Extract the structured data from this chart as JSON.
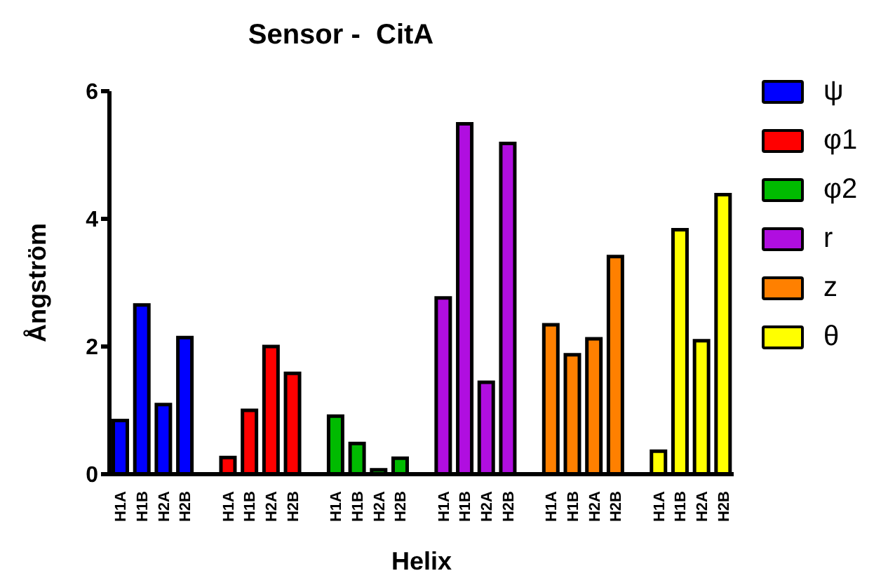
{
  "chart_data": {
    "type": "bar",
    "title": "Sensor -  CitA",
    "xlabel": "Helix",
    "ylabel": "Ångström",
    "categories": [
      "H1A",
      "H1B",
      "H2A",
      "H2B",
      null,
      "H1A",
      "H1B",
      "H2A",
      "H2B",
      null,
      "H1A",
      "H1B",
      "H2A",
      "H2B",
      null,
      "H1A",
      "H1B",
      "H2A",
      "H2B",
      null,
      "H1A",
      "H1B",
      "H2A",
      "H2B",
      null,
      "H1A",
      "H1B",
      "H2A",
      "H2B"
    ],
    "series": [
      {
        "name": "ψ",
        "color": "#0000ff",
        "values": [
          0.84,
          2.65,
          1.09,
          2.14,
          null,
          null,
          null,
          null,
          null,
          null,
          null,
          null,
          null,
          null,
          null,
          null,
          null,
          null,
          null,
          null,
          null,
          null,
          null,
          null,
          null,
          null,
          null,
          null,
          null
        ]
      },
      {
        "name": "φ1",
        "color": "#ff0000",
        "values": [
          null,
          null,
          null,
          null,
          null,
          0.26,
          1.0,
          2.0,
          1.58,
          null,
          null,
          null,
          null,
          null,
          null,
          null,
          null,
          null,
          null,
          null,
          null,
          null,
          null,
          null,
          null,
          null,
          null,
          null,
          null
        ]
      },
      {
        "name": "φ2",
        "color": "#00bb00",
        "values": [
          null,
          null,
          null,
          null,
          null,
          null,
          null,
          null,
          null,
          null,
          0.91,
          0.48,
          0.07,
          0.25,
          null,
          null,
          null,
          null,
          null,
          null,
          null,
          null,
          null,
          null,
          null,
          null,
          null,
          null,
          null
        ]
      },
      {
        "name": "r",
        "color": "#b00ee0",
        "values": [
          null,
          null,
          null,
          null,
          null,
          null,
          null,
          null,
          null,
          null,
          null,
          null,
          null,
          null,
          null,
          2.76,
          5.49,
          1.44,
          5.18,
          null,
          null,
          null,
          null,
          null,
          null,
          null,
          null,
          null,
          null
        ]
      },
      {
        "name": "z",
        "color": "#ff8000",
        "values": [
          null,
          null,
          null,
          null,
          null,
          null,
          null,
          null,
          null,
          null,
          null,
          null,
          null,
          null,
          null,
          null,
          null,
          null,
          null,
          null,
          2.34,
          1.87,
          2.12,
          3.41,
          null,
          null,
          null,
          null,
          null
        ]
      },
      {
        "name": "θ",
        "color": "#ffff00",
        "values": [
          null,
          null,
          null,
          null,
          null,
          null,
          null,
          null,
          null,
          null,
          null,
          null,
          null,
          null,
          null,
          null,
          null,
          null,
          null,
          null,
          null,
          null,
          null,
          null,
          null,
          0.36,
          3.83,
          2.09,
          4.38
        ]
      }
    ],
    "ylim": [
      0,
      6
    ],
    "yticks": [
      0,
      2,
      4,
      6
    ],
    "grid": false,
    "legend": "right"
  }
}
